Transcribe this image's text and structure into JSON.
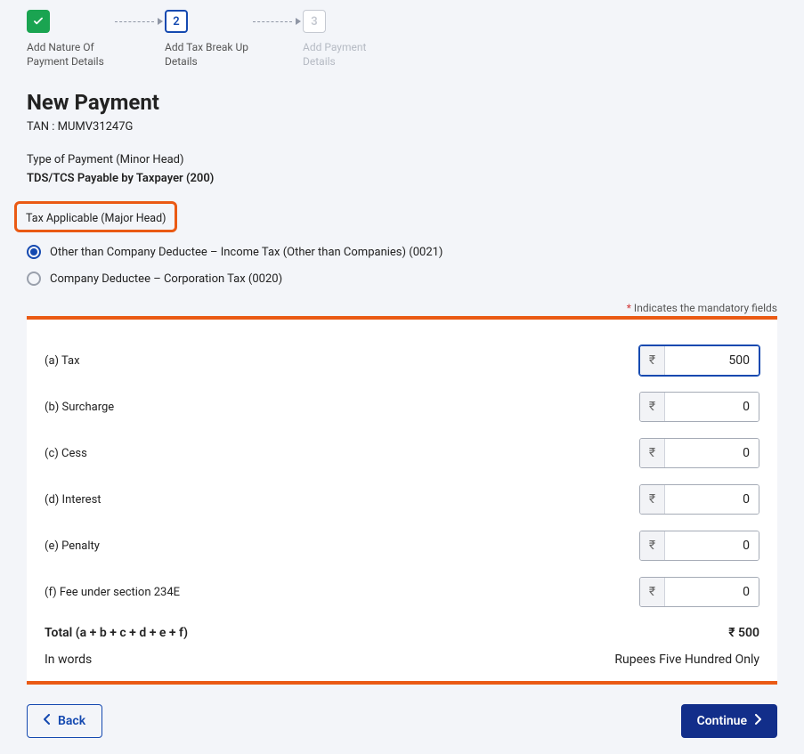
{
  "stepper": {
    "step1_label": "Add Nature Of Payment Details",
    "step2_number": "2",
    "step2_label": "Add Tax Break Up Details",
    "step3_number": "3",
    "step3_label": "Add Payment Details"
  },
  "header": {
    "title": "New Payment",
    "tan_label": "TAN : MUMV31247G",
    "type_label": "Type of Payment (Minor Head)",
    "type_value": "TDS/TCS Payable by Taxpayer (200)",
    "tax_applicable_label": "Tax Applicable (Major Head)"
  },
  "radios": {
    "opt1": "Other than Company Deductee – Income Tax (Other than Companies) (0021)",
    "opt2": "Company Deductee – Corporation Tax (0020)"
  },
  "mandatory_text": " Indicates the mandatory fields",
  "mandatory_star": "*",
  "fields": {
    "currency_symbol": "₹",
    "rows": [
      {
        "label": "(a) Tax",
        "value": "500",
        "focused": true
      },
      {
        "label": "(b) Surcharge",
        "value": "0",
        "focused": false
      },
      {
        "label": "(c) Cess",
        "value": "0",
        "focused": false
      },
      {
        "label": "(d) Interest",
        "value": "0",
        "focused": false
      },
      {
        "label": "(e) Penalty",
        "value": "0",
        "focused": false
      },
      {
        "label": "(f) Fee under section 234E",
        "value": "0",
        "focused": false
      }
    ],
    "total_label": "Total (a + b + c + d + e + f)",
    "total_value": "₹ 500",
    "words_label": "In words",
    "words_value": "Rupees Five Hundred Only"
  },
  "buttons": {
    "back": "Back",
    "continue": "Continue"
  },
  "colors": {
    "accent": "#1449b0",
    "highlight": "#ea5a14",
    "success": "#1aa451",
    "primary_btn": "#122e8a"
  }
}
